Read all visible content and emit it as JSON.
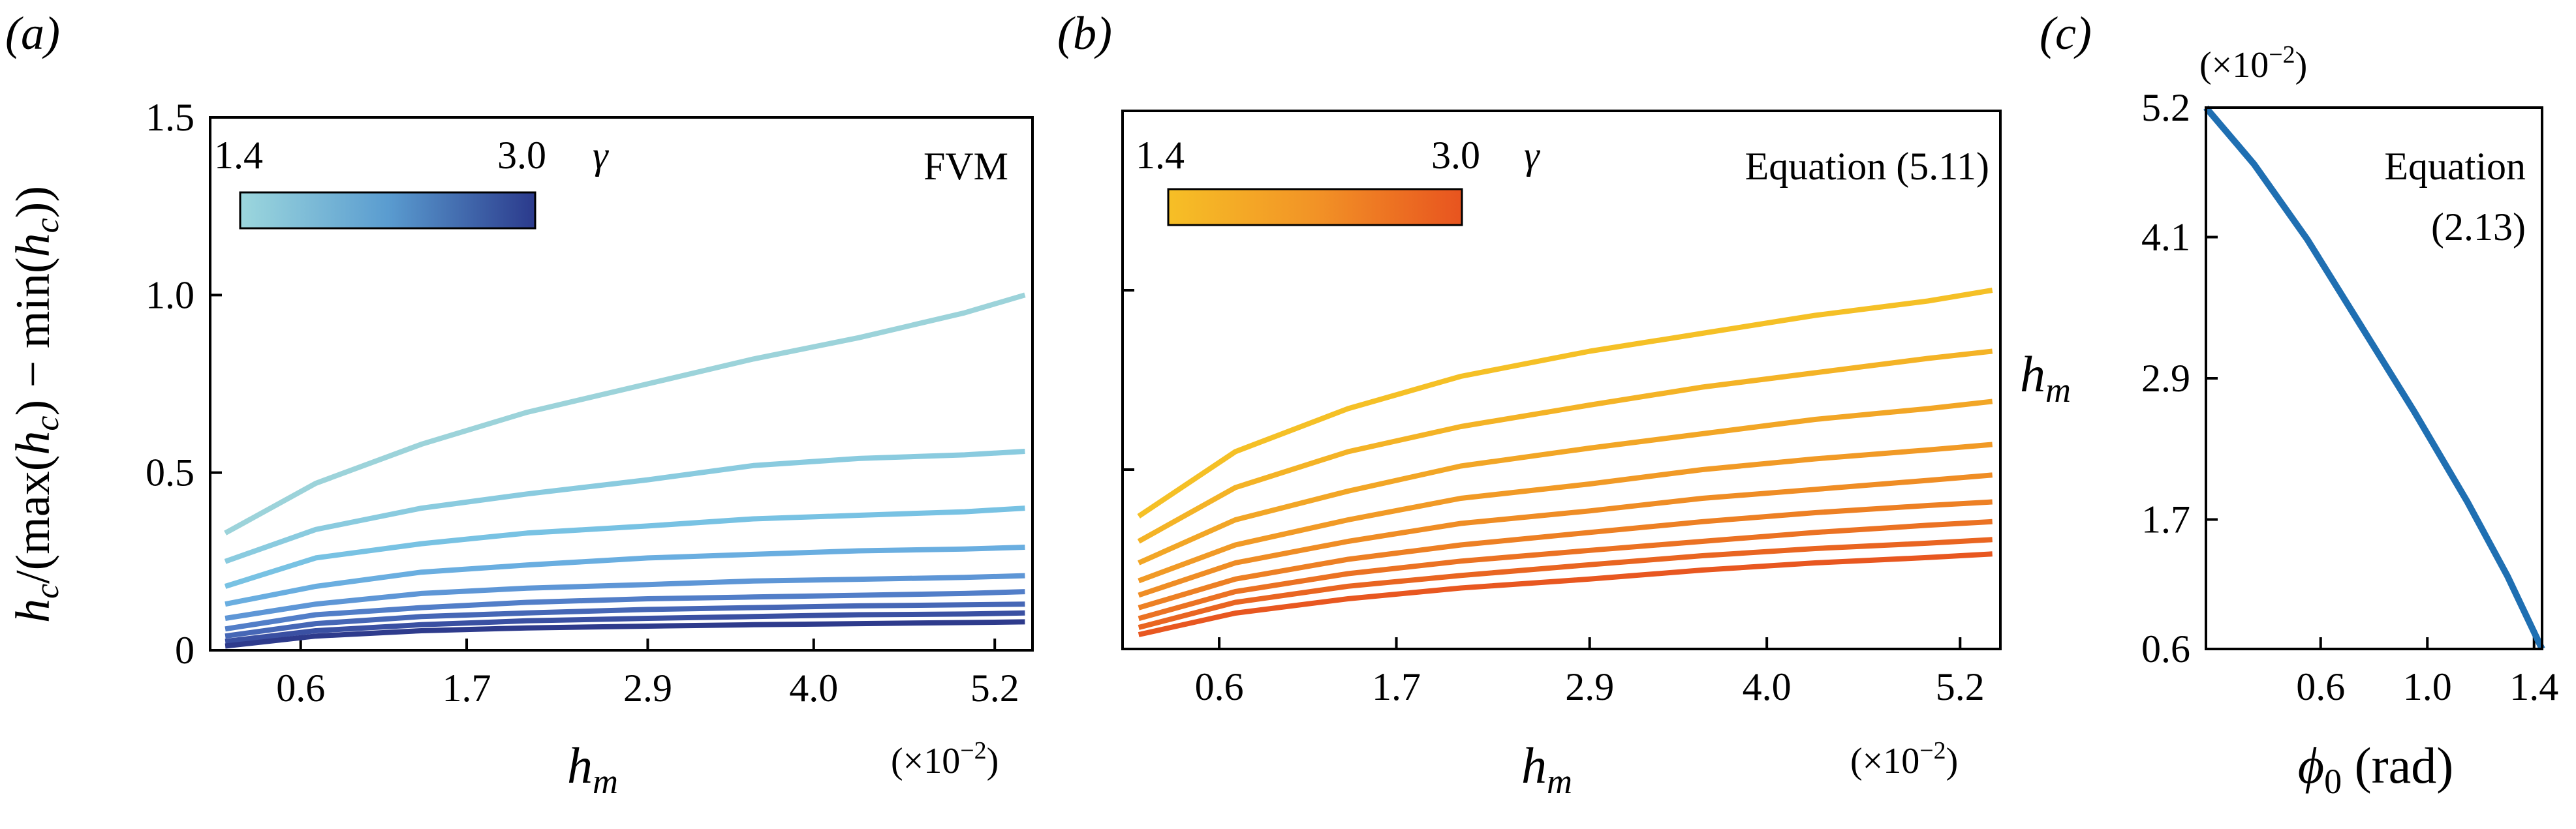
{
  "figure": {
    "panels": [
      "(a)",
      "(b)",
      "(c)"
    ]
  },
  "chart_data": [
    {
      "type": "line",
      "panel": "(a)",
      "annotation": "FVM",
      "xlabel": "h_m",
      "xlabel_main": "h",
      "xlabel_sub": "m",
      "ylabel": "h_c/(max(h_c) − min(h_c))",
      "x_multiplier": "(×10−2)",
      "x_multiplier_base": "(×10",
      "x_multiplier_exp": "−2",
      "x_multiplier_close": ")",
      "xlim": [
        0.0,
        5.45
      ],
      "ylim": [
        0,
        1.5
      ],
      "xticks": [
        0.6,
        1.7,
        2.9,
        4.0,
        5.2
      ],
      "xtick_labels": [
        "0.6",
        "1.7",
        "2.9",
        "4.0",
        "5.2"
      ],
      "yticks": [
        0,
        0.5,
        1.0,
        1.5
      ],
      "ytick_labels": [
        "0",
        "0.5",
        "1.0",
        "1.5"
      ],
      "colorbar": {
        "min_label": "1.4",
        "max_label": "3.0",
        "variable": "γ",
        "colors": [
          "#9cd7dd",
          "#5a9cd0",
          "#2b3a8c"
        ]
      },
      "x": [
        0.1,
        0.7,
        1.4,
        2.1,
        2.9,
        3.6,
        4.3,
        5.0,
        5.4
      ],
      "series": [
        {
          "color": "#9cd3da",
          "values": [
            0.33,
            0.47,
            0.58,
            0.67,
            0.75,
            0.82,
            0.88,
            0.95,
            1.0
          ]
        },
        {
          "color": "#8acbdf",
          "values": [
            0.25,
            0.34,
            0.4,
            0.44,
            0.48,
            0.52,
            0.54,
            0.55,
            0.56
          ]
        },
        {
          "color": "#78c2e3",
          "values": [
            0.18,
            0.26,
            0.3,
            0.33,
            0.35,
            0.37,
            0.38,
            0.39,
            0.4
          ]
        },
        {
          "color": "#6aaee0",
          "values": [
            0.13,
            0.18,
            0.22,
            0.24,
            0.26,
            0.27,
            0.28,
            0.285,
            0.29
          ]
        },
        {
          "color": "#5e96d6",
          "values": [
            0.09,
            0.13,
            0.16,
            0.175,
            0.185,
            0.195,
            0.2,
            0.205,
            0.21
          ]
        },
        {
          "color": "#527ec8",
          "values": [
            0.06,
            0.1,
            0.12,
            0.135,
            0.145,
            0.15,
            0.155,
            0.16,
            0.165
          ]
        },
        {
          "color": "#4667b6",
          "values": [
            0.04,
            0.075,
            0.095,
            0.105,
            0.115,
            0.12,
            0.125,
            0.128,
            0.13
          ]
        },
        {
          "color": "#3a50a2",
          "values": [
            0.025,
            0.055,
            0.072,
            0.083,
            0.09,
            0.095,
            0.1,
            0.102,
            0.105
          ]
        },
        {
          "color": "#2e3b8c",
          "values": [
            0.012,
            0.04,
            0.055,
            0.063,
            0.068,
            0.072,
            0.075,
            0.078,
            0.08
          ]
        }
      ]
    },
    {
      "type": "line",
      "panel": "(b)",
      "annotation": "Equation (5.11)",
      "xlabel": "h_m",
      "xlabel_main": "h",
      "xlabel_sub": "m",
      "x_multiplier": "(×10−2)",
      "x_multiplier_base": "(×10",
      "x_multiplier_exp": "−2",
      "x_multiplier_close": ")",
      "xlim": [
        0.0,
        5.45
      ],
      "ylim": [
        0,
        1.5
      ],
      "xticks": [
        0.6,
        1.7,
        2.9,
        4.0,
        5.2
      ],
      "xtick_labels": [
        "0.6",
        "1.7",
        "2.9",
        "4.0",
        "5.2"
      ],
      "yticks": [
        0.5,
        1.0
      ],
      "colorbar": {
        "min_label": "1.4",
        "max_label": "3.0",
        "variable": "γ",
        "colors": [
          "#f6bf26",
          "#f29326",
          "#e8541f"
        ]
      },
      "x": [
        0.1,
        0.7,
        1.4,
        2.1,
        2.9,
        3.6,
        4.3,
        5.0,
        5.4
      ],
      "series": [
        {
          "color": "#f5c026",
          "values": [
            0.37,
            0.55,
            0.67,
            0.76,
            0.83,
            0.88,
            0.93,
            0.97,
            1.0
          ]
        },
        {
          "color": "#f4b326",
          "values": [
            0.3,
            0.45,
            0.55,
            0.62,
            0.68,
            0.73,
            0.77,
            0.81,
            0.83
          ]
        },
        {
          "color": "#f2a626",
          "values": [
            0.24,
            0.36,
            0.44,
            0.51,
            0.56,
            0.6,
            0.64,
            0.67,
            0.69
          ]
        },
        {
          "color": "#f19a26",
          "values": [
            0.19,
            0.29,
            0.36,
            0.42,
            0.46,
            0.5,
            0.53,
            0.555,
            0.57
          ]
        },
        {
          "color": "#ef8d25",
          "values": [
            0.15,
            0.24,
            0.3,
            0.35,
            0.385,
            0.42,
            0.445,
            0.47,
            0.485
          ]
        },
        {
          "color": "#ed8024",
          "values": [
            0.115,
            0.195,
            0.25,
            0.29,
            0.325,
            0.355,
            0.38,
            0.4,
            0.41
          ]
        },
        {
          "color": "#eb7223",
          "values": [
            0.085,
            0.16,
            0.21,
            0.245,
            0.275,
            0.3,
            0.325,
            0.345,
            0.355
          ]
        },
        {
          "color": "#e96521",
          "values": [
            0.06,
            0.13,
            0.175,
            0.205,
            0.235,
            0.26,
            0.28,
            0.295,
            0.305
          ]
        },
        {
          "color": "#e85720",
          "values": [
            0.04,
            0.1,
            0.14,
            0.17,
            0.195,
            0.22,
            0.24,
            0.255,
            0.265
          ]
        }
      ]
    },
    {
      "type": "line",
      "panel": "(c)",
      "annotation_lines": [
        "Equation",
        "(2.13)"
      ],
      "xlabel": "ϕ0 (rad)",
      "xlabel_main": "ϕ",
      "xlabel_sub": "0",
      "xlabel_unit": "(rad)",
      "ylabel": "h_m",
      "ylabel_main": "h",
      "ylabel_sub": "m",
      "y_multiplier": "(×10−2)",
      "y_multiplier_base": "(×10",
      "y_multiplier_exp": "−2",
      "y_multiplier_close": ")",
      "xlim": [
        0.17,
        1.43
      ],
      "ylim": [
        0.6,
        5.2
      ],
      "xticks": [
        0.6,
        1.0,
        1.4
      ],
      "xtick_labels": [
        "0.6",
        "1.0",
        "1.4"
      ],
      "yticks": [
        0.6,
        1.7,
        2.9,
        4.1,
        5.2
      ],
      "ytick_labels": [
        "0.6",
        "1.7",
        "2.9",
        "4.1",
        "5.2"
      ],
      "series": [
        {
          "color": "#1f6fb2",
          "x": [
            0.17,
            0.35,
            0.55,
            0.75,
            0.95,
            1.15,
            1.3,
            1.43
          ],
          "values": [
            5.2,
            4.72,
            4.08,
            3.35,
            2.62,
            1.85,
            1.22,
            0.6
          ]
        }
      ]
    }
  ]
}
